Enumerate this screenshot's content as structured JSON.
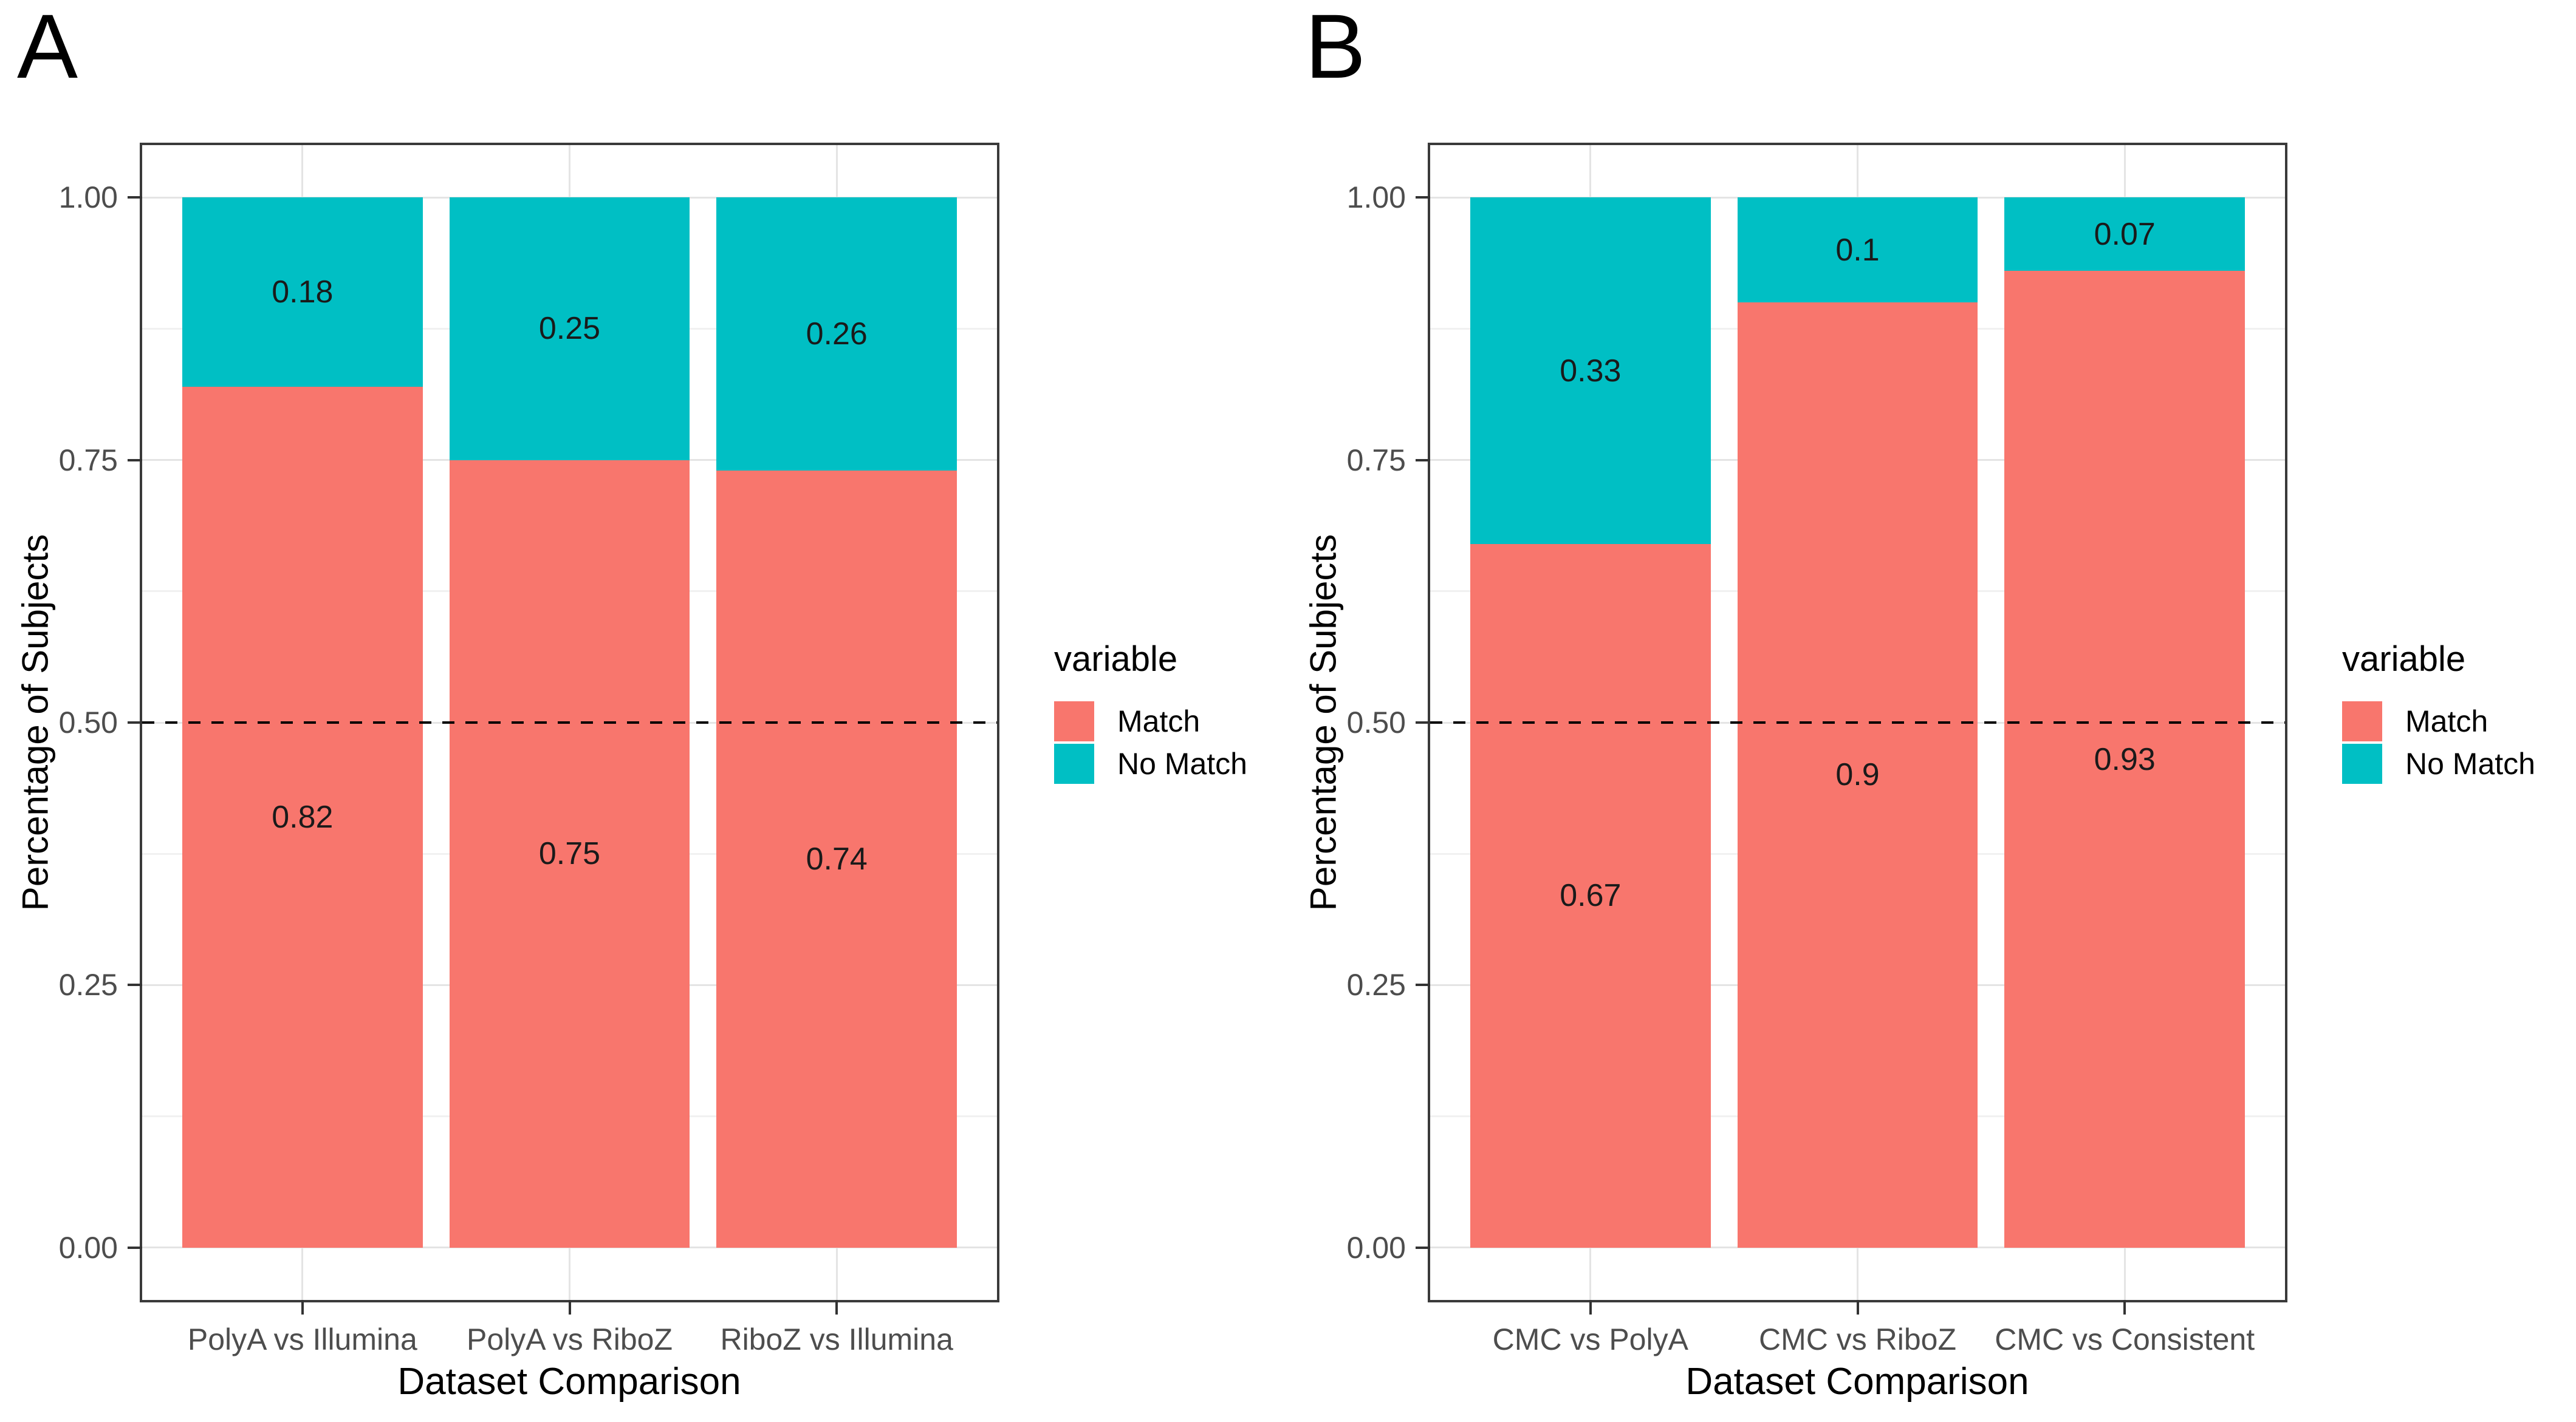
{
  "colors": {
    "match": "#F8766D",
    "no_match": "#00BFC4",
    "grid_major": "#e4e4e4",
    "grid_minor": "#f1f1f1",
    "panel_border": "#3a3a3a",
    "tick_text": "#4d4d4d",
    "reference_line": "#000000"
  },
  "chart_data": [
    {
      "type": "bar",
      "stacked": true,
      "panel_label": "A",
      "xlabel": "Dataset Comparison",
      "ylabel": "Percentage of Subjects",
      "ylim": [
        0,
        1
      ],
      "grid": true,
      "reference_line_y": 0.5,
      "yticks": [
        {
          "value": 0,
          "label": "0.00"
        },
        {
          "value": 0.25,
          "label": "0.25"
        },
        {
          "value": 0.5,
          "label": "0.50"
        },
        {
          "value": 0.75,
          "label": "0.75"
        },
        {
          "value": 1,
          "label": "1.00"
        }
      ],
      "categories": [
        "PolyA vs Illumina",
        "PolyA vs RiboZ",
        "RiboZ vs Illumina"
      ],
      "series": [
        {
          "name": "Match",
          "color_key": "match",
          "values": [
            0.82,
            0.75,
            0.74
          ],
          "labels": [
            "0.82",
            "0.75",
            "0.74"
          ]
        },
        {
          "name": "No Match",
          "color_key": "no_match",
          "values": [
            0.18,
            0.25,
            0.26
          ],
          "labels": [
            "0.18",
            "0.25",
            "0.26"
          ]
        }
      ],
      "legend": {
        "title": "variable",
        "position": "right"
      }
    },
    {
      "type": "bar",
      "stacked": true,
      "panel_label": "B",
      "xlabel": "Dataset Comparison",
      "ylabel": "Percentage of Subjects",
      "ylim": [
        0,
        1
      ],
      "grid": true,
      "reference_line_y": 0.5,
      "yticks": [
        {
          "value": 0,
          "label": "0.00"
        },
        {
          "value": 0.25,
          "label": "0.25"
        },
        {
          "value": 0.5,
          "label": "0.50"
        },
        {
          "value": 0.75,
          "label": "0.75"
        },
        {
          "value": 1,
          "label": "1.00"
        }
      ],
      "categories": [
        "CMC vs PolyA",
        "CMC vs RiboZ",
        "CMC vs Consistent"
      ],
      "series": [
        {
          "name": "Match",
          "color_key": "match",
          "values": [
            0.67,
            0.9,
            0.93
          ],
          "labels": [
            "0.67",
            "0.9",
            "0.93"
          ]
        },
        {
          "name": "No Match",
          "color_key": "no_match",
          "values": [
            0.33,
            0.1,
            0.07
          ],
          "labels": [
            "0.33",
            "0.1",
            "0.07"
          ]
        }
      ],
      "legend": {
        "title": "variable",
        "position": "right"
      }
    }
  ]
}
